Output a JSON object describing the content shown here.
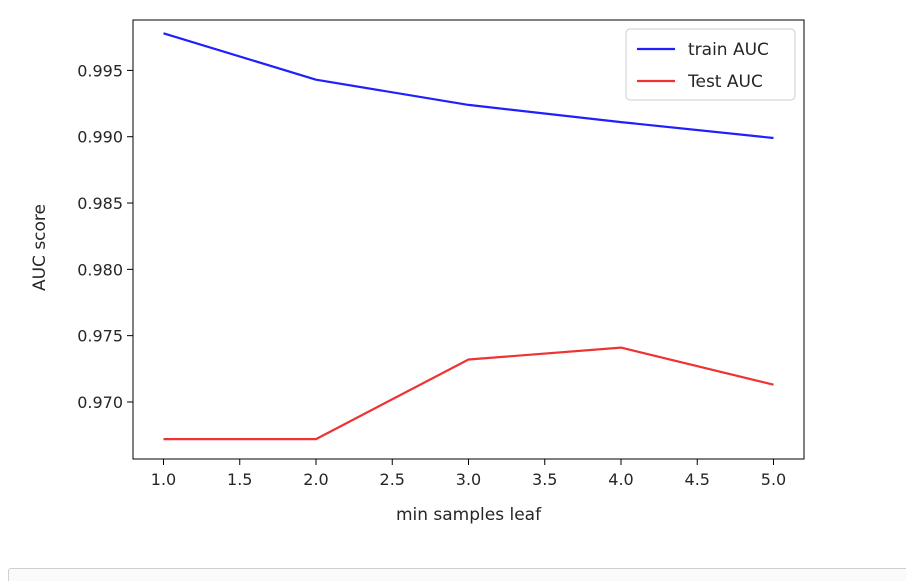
{
  "chart_data": {
    "type": "line",
    "xlabel": "min samples leaf",
    "ylabel": "AUC score",
    "xlim": [
      0.8,
      5.2
    ],
    "ylim": [
      0.9657,
      0.9988
    ],
    "xticks": [
      1.0,
      1.5,
      2.0,
      2.5,
      3.0,
      3.5,
      4.0,
      4.5,
      5.0
    ],
    "xtick_labels": [
      "1.0",
      "1.5",
      "2.0",
      "2.5",
      "3.0",
      "3.5",
      "4.0",
      "4.5",
      "5.0"
    ],
    "yticks": [
      0.97,
      0.975,
      0.98,
      0.985,
      0.99,
      0.995
    ],
    "ytick_labels": [
      "0.970",
      "0.975",
      "0.980",
      "0.985",
      "0.990",
      "0.995"
    ],
    "grid": false,
    "legend_position": "top-right",
    "x": [
      1.0,
      2.0,
      3.0,
      4.0,
      5.0
    ],
    "series": [
      {
        "name": "train AUC",
        "color": "#1f1fff",
        "values": [
          0.9978,
          0.9943,
          0.9924,
          0.9911,
          0.9899
        ]
      },
      {
        "name": "Test AUC",
        "color": "#ee3333",
        "values": [
          0.9672,
          0.9672,
          0.9732,
          0.9741,
          0.9713
        ]
      }
    ]
  }
}
